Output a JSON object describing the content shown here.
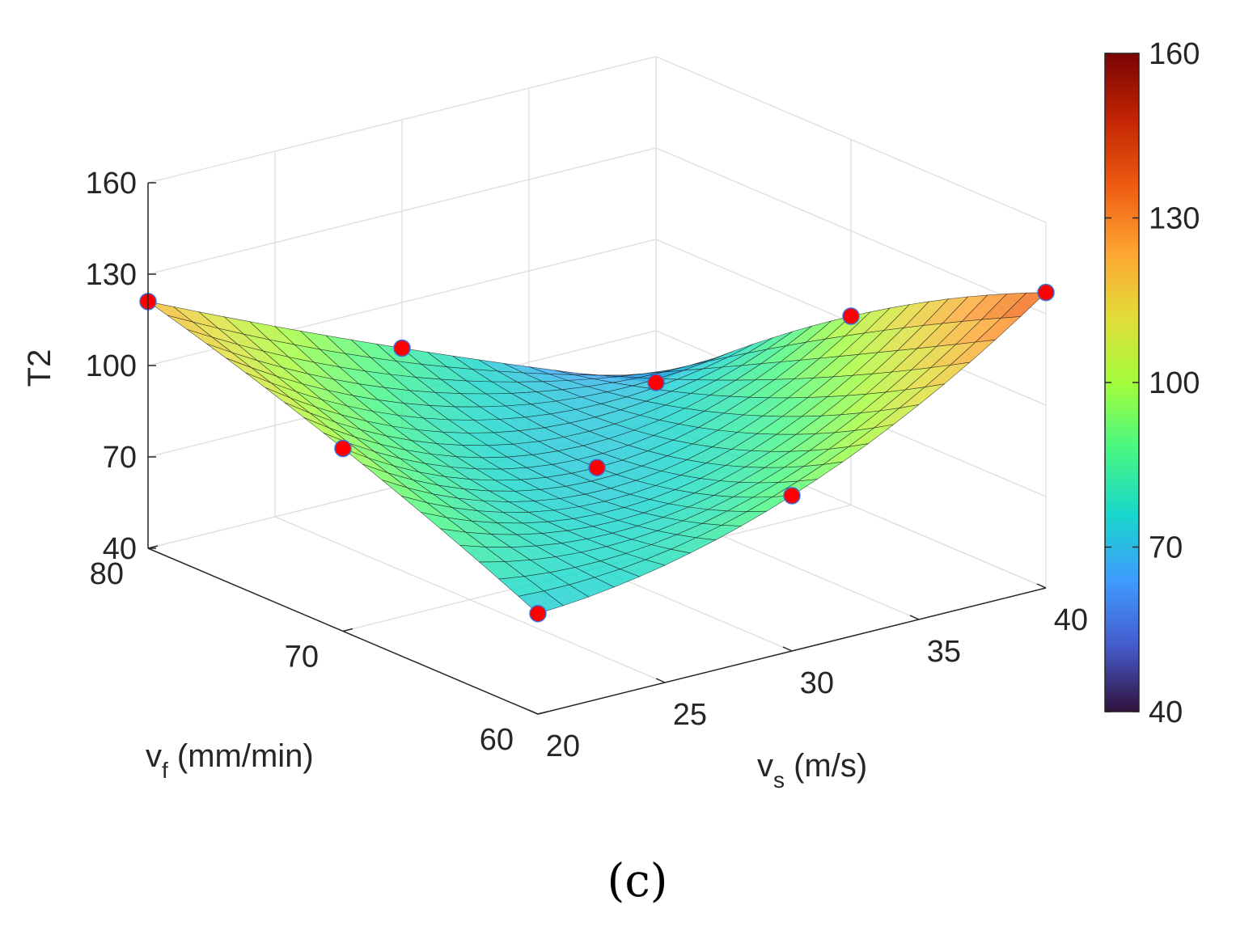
{
  "chart_data": {
    "type": "surface",
    "title": "",
    "zlabel": "T2",
    "xlabel_main": "v",
    "xlabel_sub": "s",
    "xlabel_unit": " (m/s)",
    "ylabel_main": "v",
    "ylabel_sub": "f",
    "ylabel_unit": " (mm/min)",
    "xlim": [
      20,
      40
    ],
    "ylim": [
      60,
      80
    ],
    "zlim": [
      40,
      160
    ],
    "x_ticks": [
      "20",
      "25",
      "30",
      "35",
      "40"
    ],
    "y_ticks": [
      "60",
      "70",
      "80"
    ],
    "z_ticks": [
      "40",
      "70",
      "100",
      "130",
      "160"
    ],
    "colorbar": {
      "range": [
        40,
        160
      ],
      "ticks": [
        "40",
        "70",
        "100",
        "130",
        "160"
      ],
      "colormap": "turbo"
    },
    "grid": true,
    "surface_corners": {
      "vs20_vf80": 121,
      "vs20_vf60": 73,
      "vs40_vf80": 53,
      "vs40_vf60": 137
    },
    "points": [
      {
        "vs": 20,
        "vf": 80,
        "T2": 121
      },
      {
        "vs": 20,
        "vf": 70,
        "T2": 100
      },
      {
        "vs": 20,
        "vf": 60,
        "T2": 73
      },
      {
        "vs": 30,
        "vf": 80,
        "T2": 85
      },
      {
        "vs": 30,
        "vf": 70,
        "T2": 73
      },
      {
        "vs": 30,
        "vf": 60,
        "T2": 91
      },
      {
        "vs": 40,
        "vf": 80,
        "T2": 53
      },
      {
        "vs": 40,
        "vf": 70,
        "T2": 102
      },
      {
        "vs": 40,
        "vf": 60,
        "T2": 137
      }
    ],
    "marker_color": "#ff0000"
  },
  "caption": "(c)"
}
